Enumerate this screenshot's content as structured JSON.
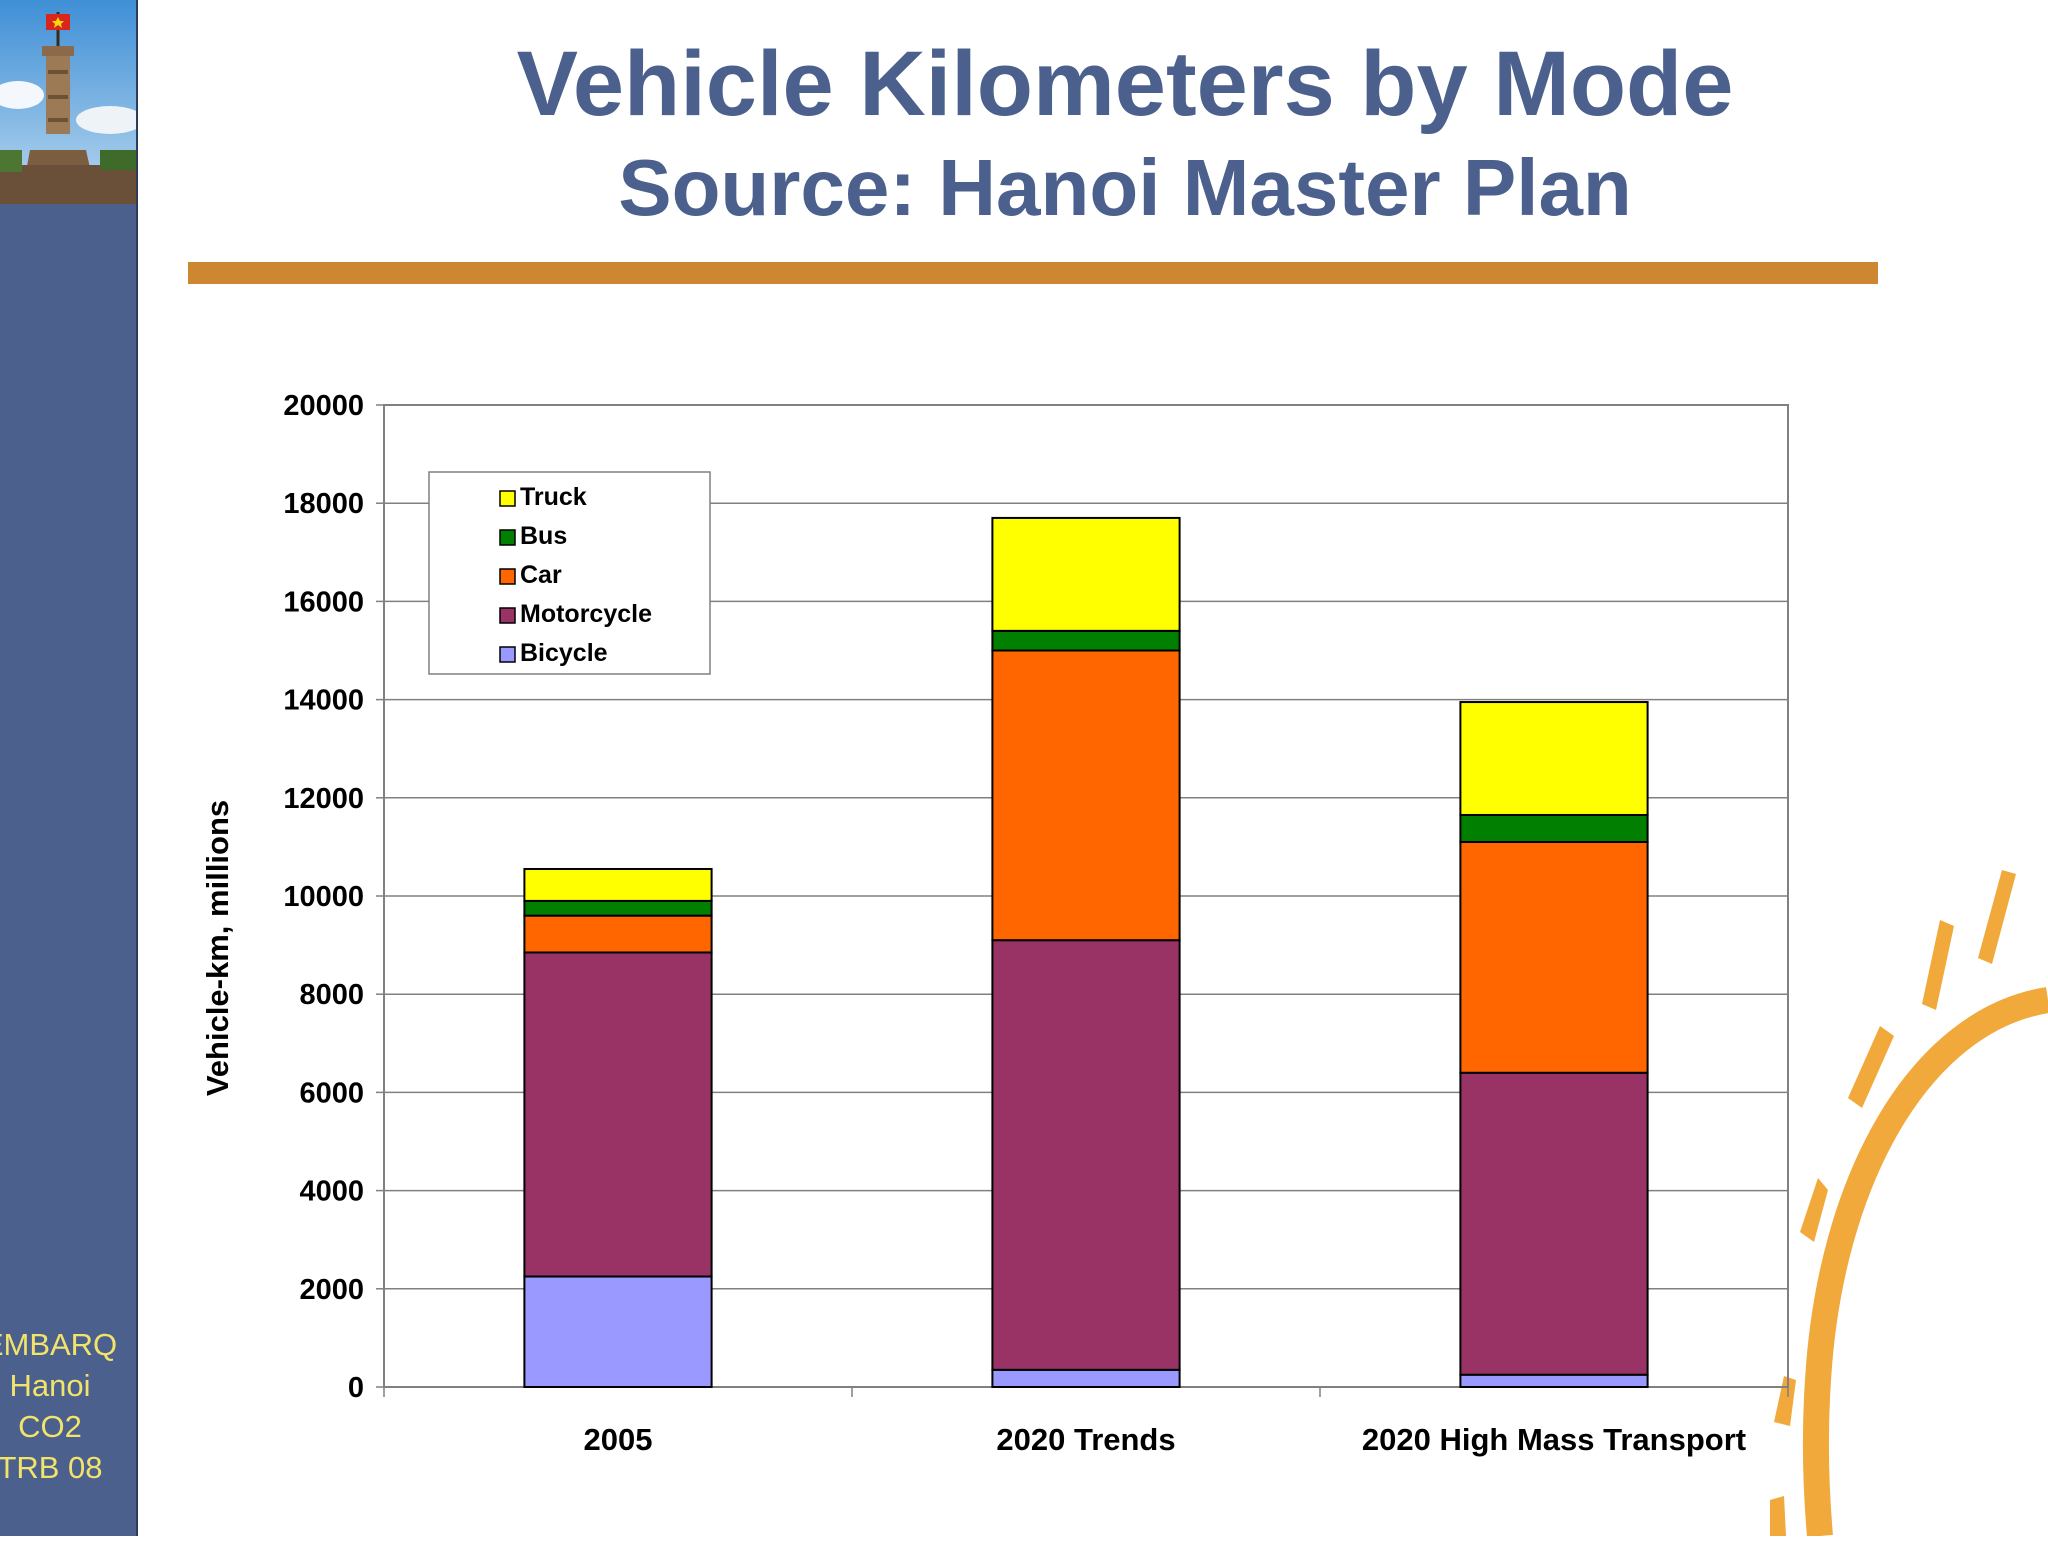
{
  "sidebar": {
    "lines": [
      "EMBARQ",
      "Hanoi",
      "CO2",
      "TRB 08"
    ]
  },
  "colors": {
    "sidebar": "#4b608c",
    "title": "#4b608c",
    "rule": "#cc8730",
    "sidebar_text": "#f2e36b",
    "sun": "#f0a93a"
  },
  "chart_data": {
    "type": "bar",
    "stacked": true,
    "title": "Vehicle Kilometers by Mode",
    "subtitle": "Source: Hanoi Master Plan",
    "categories": [
      "2005",
      "2020 Trends",
      "2020 High Mass Transport"
    ],
    "xlabel": "",
    "ylabel": "Vehicle-km, millions",
    "ylim": [
      0,
      20000
    ],
    "yticks": [
      0,
      2000,
      4000,
      6000,
      8000,
      10000,
      12000,
      14000,
      16000,
      18000,
      20000
    ],
    "grid": true,
    "legend_position": "top-left",
    "series": [
      {
        "name": "Bicycle",
        "color": "#9999ff",
        "values": [
          2250,
          350,
          250
        ]
      },
      {
        "name": "Motorcycle",
        "color": "#993366",
        "values": [
          6600,
          8750,
          6150
        ]
      },
      {
        "name": "Car",
        "color": "#ff6600",
        "values": [
          750,
          5900,
          4700
        ]
      },
      {
        "name": "Bus",
        "color": "#007f00",
        "values": [
          300,
          400,
          550
        ]
      },
      {
        "name": "Truck",
        "color": "#ffff00",
        "values": [
          650,
          2300,
          2300
        ]
      }
    ]
  }
}
